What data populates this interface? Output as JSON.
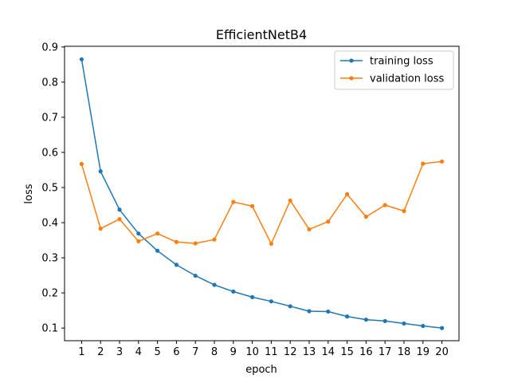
{
  "chart_data": {
    "type": "line",
    "title": "EfficientNetB4",
    "xlabel": "epoch",
    "ylabel": "loss",
    "x": [
      1,
      2,
      3,
      4,
      5,
      6,
      7,
      8,
      9,
      10,
      11,
      12,
      13,
      14,
      15,
      16,
      17,
      18,
      19,
      20
    ],
    "xlim": [
      0.1,
      20.9
    ],
    "ylim": [
      0.064,
      0.902
    ],
    "xticks": [
      1,
      2,
      3,
      4,
      5,
      6,
      7,
      8,
      9,
      10,
      11,
      12,
      13,
      14,
      15,
      16,
      17,
      18,
      19,
      20
    ],
    "yticks": [
      0.1,
      0.2,
      0.3,
      0.4,
      0.5,
      0.6,
      0.7,
      0.8,
      0.9
    ],
    "grid": false,
    "legend_position": "top-right",
    "series": [
      {
        "name": "training loss",
        "color": "#1f77b4",
        "values": [
          0.865,
          0.546,
          0.437,
          0.369,
          0.32,
          0.28,
          0.249,
          0.223,
          0.204,
          0.188,
          0.176,
          0.162,
          0.148,
          0.147,
          0.133,
          0.124,
          0.12,
          0.113,
          0.106,
          0.1
        ]
      },
      {
        "name": "validation loss",
        "color": "#ff7f0e",
        "values": [
          0.567,
          0.383,
          0.41,
          0.347,
          0.369,
          0.345,
          0.341,
          0.352,
          0.459,
          0.447,
          0.34,
          0.463,
          0.381,
          0.403,
          0.481,
          0.417,
          0.45,
          0.433,
          0.568,
          0.574
        ]
      }
    ]
  }
}
